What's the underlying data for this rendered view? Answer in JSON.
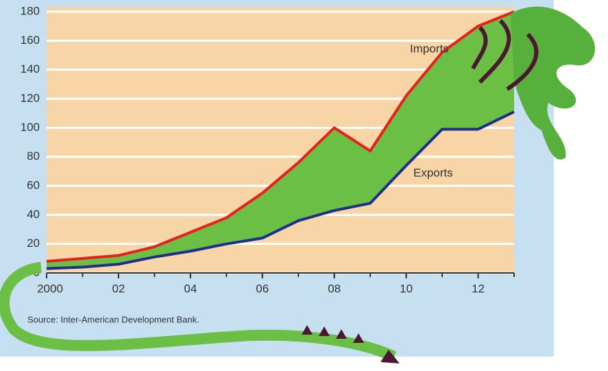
{
  "chart_data": {
    "type": "line",
    "x": [
      2000,
      2001,
      2002,
      2003,
      2004,
      2005,
      2006,
      2007,
      2008,
      2009,
      2010,
      2011,
      2012,
      2013
    ],
    "series": [
      {
        "name": "Imports",
        "color": "#e8201c",
        "values": [
          8,
          10,
          12,
          18,
          28,
          38,
          55,
          76,
          100,
          84,
          122,
          152,
          170,
          180
        ]
      },
      {
        "name": "Exports",
        "color": "#1d2f8a",
        "values": [
          3,
          4,
          6,
          11,
          15,
          20,
          24,
          36,
          43,
          48,
          74,
          99,
          99,
          111
        ]
      }
    ],
    "fill_between_color": "#6cbf45",
    "xlim": [
      2000,
      2013
    ],
    "xticks": [
      {
        "value": 2000,
        "label": "2000"
      },
      {
        "value": 2002,
        "label": "02"
      },
      {
        "value": 2004,
        "label": "04"
      },
      {
        "value": 2006,
        "label": "06"
      },
      {
        "value": 2008,
        "label": "08"
      },
      {
        "value": 2010,
        "label": "10"
      },
      {
        "value": 2012,
        "label": "12"
      }
    ],
    "ylim": [
      0,
      180
    ],
    "yticks": [
      0,
      20,
      40,
      60,
      80,
      100,
      120,
      140,
      160,
      180
    ],
    "grid": true,
    "source": "Source: Inter-American Development Bank."
  }
}
